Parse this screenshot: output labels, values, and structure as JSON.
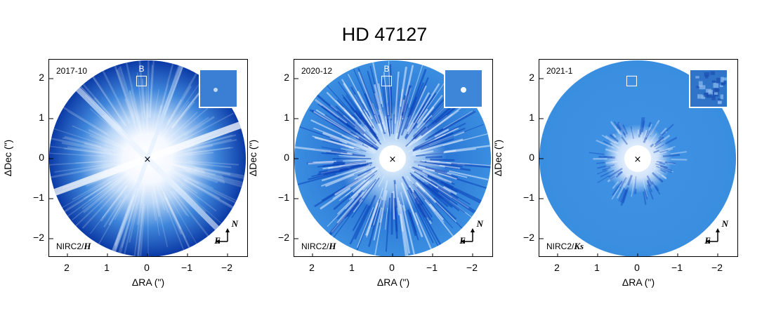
{
  "title": "HD 47127",
  "panels": [
    {
      "epoch": "2017-10",
      "instrument": "NIRC2/",
      "band": "H",
      "companion_label": "B",
      "style": "raw"
    },
    {
      "epoch": "2020-12",
      "instrument": "NIRC2/",
      "band": "H",
      "companion_label": "B",
      "style": "residual"
    },
    {
      "epoch": "2021-1",
      "instrument": "NIRC2/",
      "band": "Ks",
      "companion_label": "",
      "style": "clean"
    }
  ],
  "axes": {
    "xlabel": "ΔRA (\")",
    "ylabel": "ΔDec (\")",
    "xticks": [
      "2",
      "1",
      "0",
      "−1",
      "−2"
    ],
    "yticks": [
      "2",
      "1",
      "0",
      "−1",
      "−2"
    ]
  },
  "compass": {
    "north": "N",
    "east": "E"
  },
  "colors": {
    "field": "#3a8ee0",
    "deep": "#0a3fb8",
    "core": "#ffffff"
  }
}
